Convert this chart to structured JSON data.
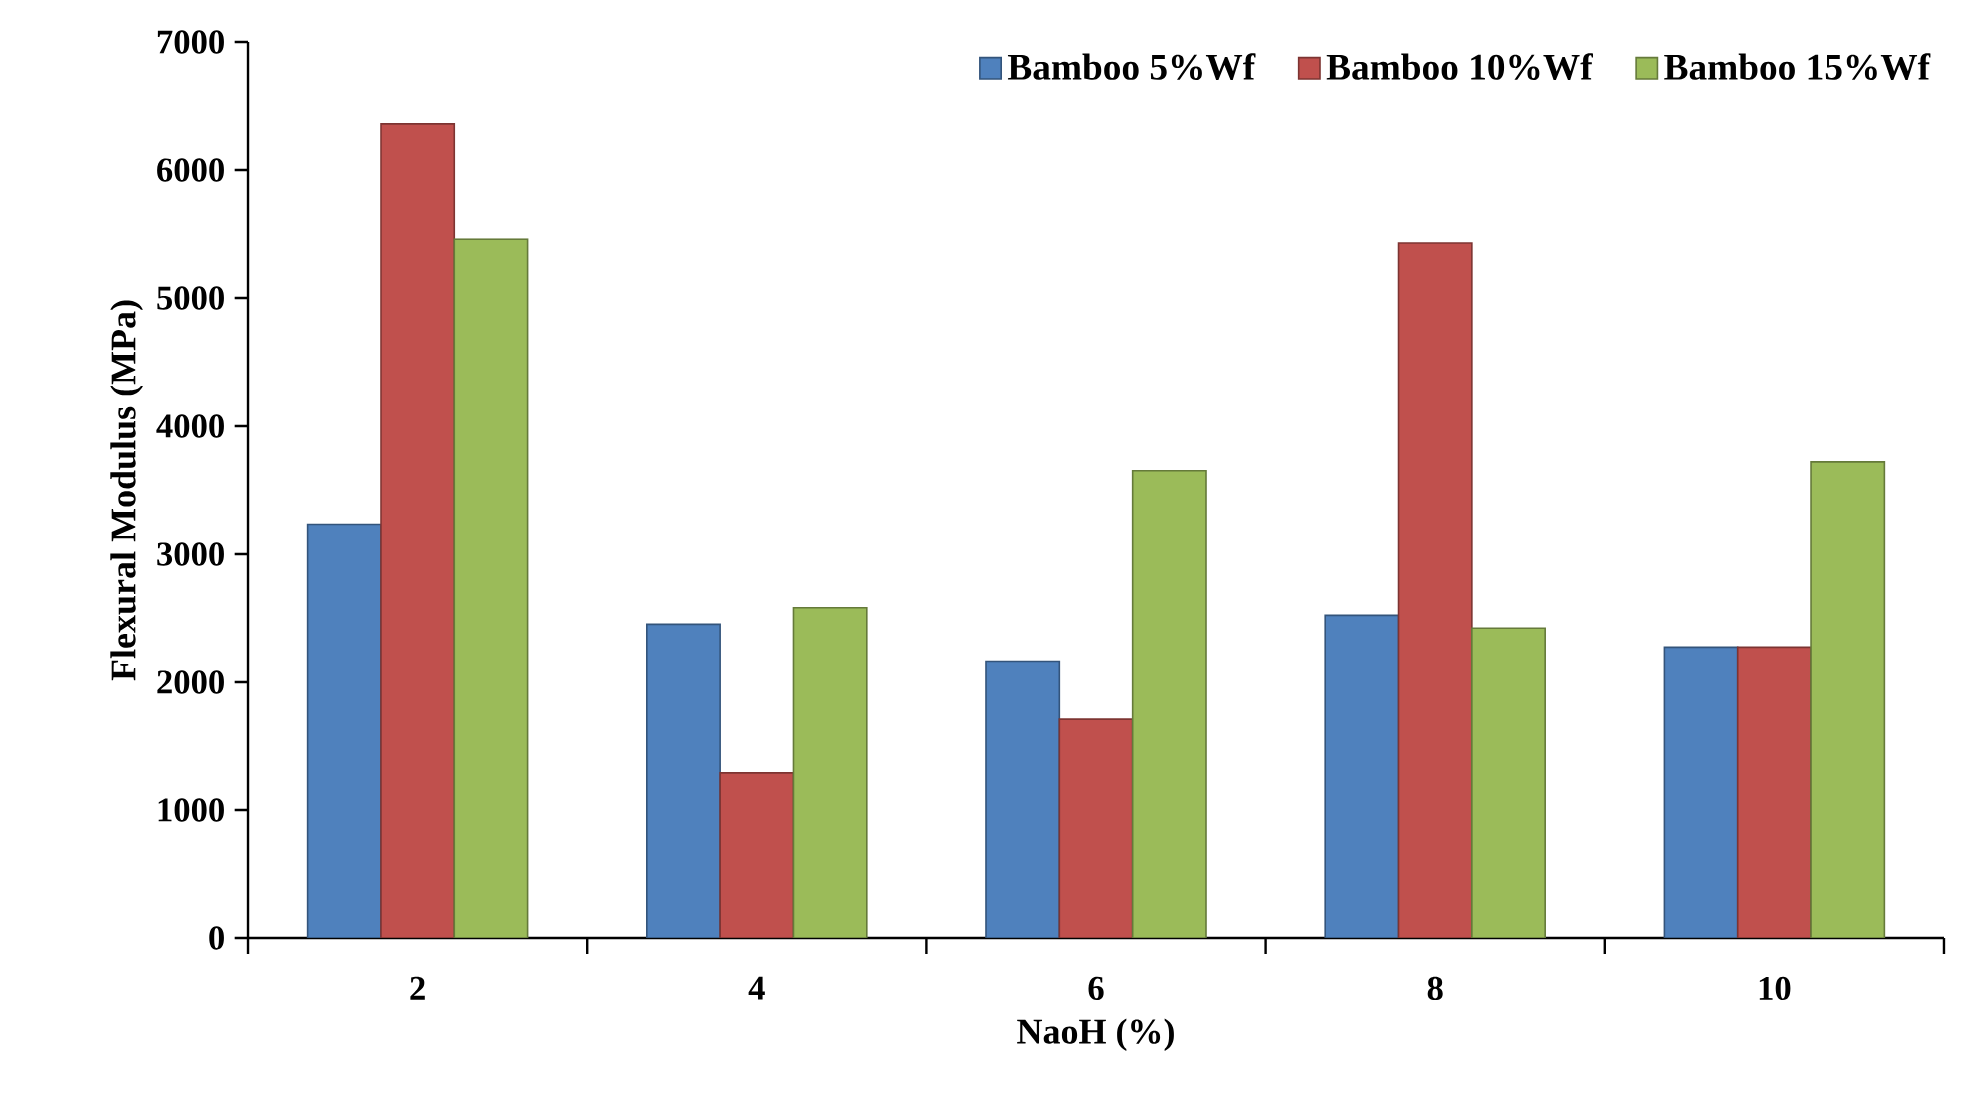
{
  "chart_data": {
    "type": "bar",
    "xlabel": "NaoH (%)",
    "ylabel": "Flexural Modulus (MPa)",
    "categories": [
      "2",
      "4",
      "6",
      "8",
      "10"
    ],
    "series": [
      {
        "name": "Bamboo 5%Wf",
        "color": "#4f81bd",
        "values": [
          3230,
          2450,
          2160,
          2520,
          2270
        ]
      },
      {
        "name": "Bamboo 10%Wf",
        "color": "#c0504d",
        "values": [
          6360,
          1290,
          1710,
          5430,
          2270
        ]
      },
      {
        "name": "Bamboo 15%Wf",
        "color": "#9bbb59",
        "values": [
          5460,
          2580,
          3650,
          2420,
          3720
        ]
      }
    ],
    "ylim": [
      0,
      7000
    ],
    "yticks": [
      0,
      1000,
      2000,
      3000,
      4000,
      5000,
      6000,
      7000
    ],
    "grid": false,
    "legend": "top right"
  }
}
